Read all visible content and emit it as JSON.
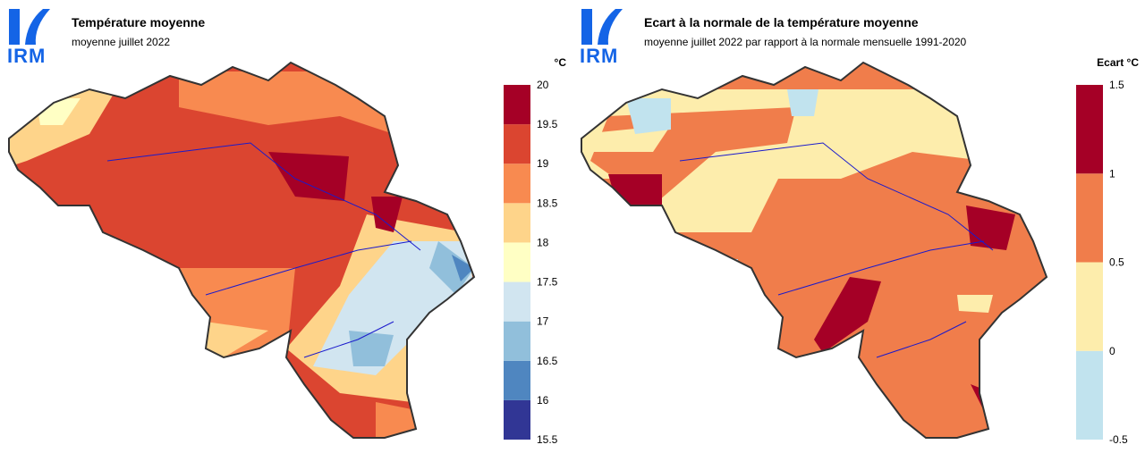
{
  "maps": [
    {
      "logo": "IRM",
      "title": "Température moyenne",
      "subtitle": "moyenne juillet 2022",
      "legend": {
        "unit": "°C",
        "ticks": [
          15.5,
          16,
          16.5,
          17,
          17.5,
          18,
          18.5,
          19,
          19.5,
          20
        ],
        "colors": [
          "#313695",
          "#4f86c0",
          "#91bfdb",
          "#d1e5f0",
          "#ffffc4",
          "#fed48a",
          "#f88a50",
          "#db4530",
          "#a50026"
        ]
      }
    },
    {
      "logo": "IRM",
      "title": "Ecart à la normale de la température moyenne",
      "subtitle": "moyenne juillet 2022 par rapport à la normale mensuelle 1991-2020",
      "legend": {
        "unit": "Ecart °C",
        "ticks": [
          -0.5,
          0,
          0.5,
          1,
          1.5
        ],
        "colors": [
          "#c1e3ee",
          "#fdedac",
          "#f07d4b",
          "#a50026"
        ]
      }
    }
  ]
}
